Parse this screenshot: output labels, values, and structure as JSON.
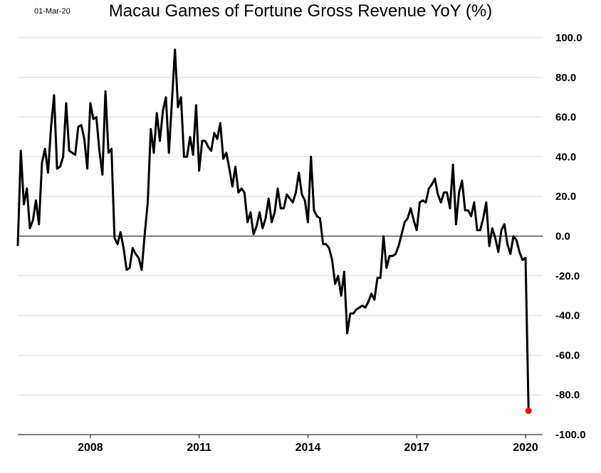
{
  "date_stamp": "01-Mar-20",
  "chart_data": {
    "type": "line",
    "title": "Macau Games of Fortune Gross Revenue YoY (%)",
    "xlabel": "",
    "ylabel": "",
    "y_axis_position": "right",
    "ylim": [
      -100,
      100
    ],
    "y_ticks": [
      "100.0",
      "80.0",
      "60.0",
      "40.0",
      "20.0",
      "0.0",
      "-20.0",
      "-40.0",
      "-60.0",
      "-80.0",
      "-100.0"
    ],
    "x_ticks": [
      "2008",
      "2011",
      "2014",
      "2017",
      "2020"
    ],
    "grid": true,
    "zero_line": true,
    "highlight_last_point": true,
    "highlight_color": "#ff0000",
    "line_color": "#000000",
    "series": [
      {
        "values": [
          {
            "x": "2006-01",
            "y": -4.5
          },
          {
            "x": "2006-02",
            "y": 43
          },
          {
            "x": "2006-03",
            "y": 16
          },
          {
            "x": "2006-04",
            "y": 24
          },
          {
            "x": "2006-05",
            "y": 4
          },
          {
            "x": "2006-06",
            "y": 8
          },
          {
            "x": "2006-07",
            "y": 18
          },
          {
            "x": "2006-08",
            "y": 6
          },
          {
            "x": "2006-09",
            "y": 37
          },
          {
            "x": "2006-10",
            "y": 44
          },
          {
            "x": "2006-11",
            "y": 32
          },
          {
            "x": "2006-12",
            "y": 55
          },
          {
            "x": "2007-01",
            "y": 71
          },
          {
            "x": "2007-02",
            "y": 34
          },
          {
            "x": "2007-03",
            "y": 35
          },
          {
            "x": "2007-04",
            "y": 40
          },
          {
            "x": "2007-05",
            "y": 67
          },
          {
            "x": "2007-06",
            "y": 43
          },
          {
            "x": "2007-07",
            "y": 42
          },
          {
            "x": "2007-08",
            "y": 41
          },
          {
            "x": "2007-09",
            "y": 55
          },
          {
            "x": "2007-10",
            "y": 56
          },
          {
            "x": "2007-11",
            "y": 49
          },
          {
            "x": "2007-12",
            "y": 34
          },
          {
            "x": "2008-01",
            "y": 67
          },
          {
            "x": "2008-02",
            "y": 59
          },
          {
            "x": "2008-03",
            "y": 60
          },
          {
            "x": "2008-04",
            "y": 43
          },
          {
            "x": "2008-05",
            "y": 31
          },
          {
            "x": "2008-06",
            "y": 73
          },
          {
            "x": "2008-07",
            "y": 42
          },
          {
            "x": "2008-08",
            "y": 44
          },
          {
            "x": "2008-09",
            "y": -1
          },
          {
            "x": "2008-10",
            "y": -4
          },
          {
            "x": "2008-11",
            "y": 2
          },
          {
            "x": "2008-12",
            "y": -6
          },
          {
            "x": "2009-01",
            "y": -17
          },
          {
            "x": "2009-02",
            "y": -16
          },
          {
            "x": "2009-03",
            "y": -6
          },
          {
            "x": "2009-04",
            "y": -9
          },
          {
            "x": "2009-05",
            "y": -11
          },
          {
            "x": "2009-06",
            "y": -17
          },
          {
            "x": "2009-07",
            "y": 1
          },
          {
            "x": "2009-08",
            "y": 17
          },
          {
            "x": "2009-09",
            "y": 54
          },
          {
            "x": "2009-10",
            "y": 42
          },
          {
            "x": "2009-11",
            "y": 62
          },
          {
            "x": "2009-12",
            "y": 48
          },
          {
            "x": "2010-01",
            "y": 63
          },
          {
            "x": "2010-02",
            "y": 70
          },
          {
            "x": "2010-03",
            "y": 42
          },
          {
            "x": "2010-04",
            "y": 68
          },
          {
            "x": "2010-05",
            "y": 94
          },
          {
            "x": "2010-06",
            "y": 65
          },
          {
            "x": "2010-07",
            "y": 70
          },
          {
            "x": "2010-08",
            "y": 40
          },
          {
            "x": "2010-09",
            "y": 40
          },
          {
            "x": "2010-10",
            "y": 50
          },
          {
            "x": "2010-11",
            "y": 41
          },
          {
            "x": "2010-12",
            "y": 66
          },
          {
            "x": "2011-01",
            "y": 33
          },
          {
            "x": "2011-02",
            "y": 48
          },
          {
            "x": "2011-03",
            "y": 48
          },
          {
            "x": "2011-04",
            "y": 45
          },
          {
            "x": "2011-05",
            "y": 43
          },
          {
            "x": "2011-06",
            "y": 52
          },
          {
            "x": "2011-07",
            "y": 49
          },
          {
            "x": "2011-08",
            "y": 57
          },
          {
            "x": "2011-09",
            "y": 39
          },
          {
            "x": "2011-10",
            "y": 42
          },
          {
            "x": "2011-11",
            "y": 34
          },
          {
            "x": "2011-12",
            "y": 25
          },
          {
            "x": "2012-01",
            "y": 35
          },
          {
            "x": "2012-02",
            "y": 22
          },
          {
            "x": "2012-03",
            "y": 24
          },
          {
            "x": "2012-04",
            "y": 22
          },
          {
            "x": "2012-05",
            "y": 7
          },
          {
            "x": "2012-06",
            "y": 12
          },
          {
            "x": "2012-07",
            "y": 1
          },
          {
            "x": "2012-08",
            "y": 5
          },
          {
            "x": "2012-09",
            "y": 12
          },
          {
            "x": "2012-10",
            "y": 4
          },
          {
            "x": "2012-11",
            "y": 9
          },
          {
            "x": "2012-12",
            "y": 19
          },
          {
            "x": "2013-01",
            "y": 7
          },
          {
            "x": "2013-02",
            "y": 12
          },
          {
            "x": "2013-03",
            "y": 24
          },
          {
            "x": "2013-04",
            "y": 14
          },
          {
            "x": "2013-05",
            "y": 14
          },
          {
            "x": "2013-06",
            "y": 21
          },
          {
            "x": "2013-07",
            "y": 19
          },
          {
            "x": "2013-08",
            "y": 17
          },
          {
            "x": "2013-09",
            "y": 22
          },
          {
            "x": "2013-10",
            "y": 32
          },
          {
            "x": "2013-11",
            "y": 21
          },
          {
            "x": "2013-12",
            "y": 18
          },
          {
            "x": "2014-01",
            "y": 7
          },
          {
            "x": "2014-02",
            "y": 40
          },
          {
            "x": "2014-03",
            "y": 13
          },
          {
            "x": "2014-04",
            "y": 10
          },
          {
            "x": "2014-05",
            "y": 9
          },
          {
            "x": "2014-06",
            "y": -4
          },
          {
            "x": "2014-07",
            "y": -4
          },
          {
            "x": "2014-08",
            "y": -6
          },
          {
            "x": "2014-09",
            "y": -12
          },
          {
            "x": "2014-10",
            "y": -24
          },
          {
            "x": "2014-11",
            "y": -20
          },
          {
            "x": "2014-12",
            "y": -30
          },
          {
            "x": "2015-01",
            "y": -18
          },
          {
            "x": "2015-02",
            "y": -49
          },
          {
            "x": "2015-03",
            "y": -39
          },
          {
            "x": "2015-04",
            "y": -39
          },
          {
            "x": "2015-05",
            "y": -37
          },
          {
            "x": "2015-06",
            "y": -36
          },
          {
            "x": "2015-07",
            "y": -35
          },
          {
            "x": "2015-08",
            "y": -36
          },
          {
            "x": "2015-09",
            "y": -33
          },
          {
            "x": "2015-10",
            "y": -29
          },
          {
            "x": "2015-11",
            "y": -32
          },
          {
            "x": "2015-12",
            "y": -21
          },
          {
            "x": "2016-01",
            "y": -21
          },
          {
            "x": "2016-02",
            "y": 0
          },
          {
            "x": "2016-03",
            "y": -16
          },
          {
            "x": "2016-04",
            "y": -10
          },
          {
            "x": "2016-05",
            "y": -10
          },
          {
            "x": "2016-06",
            "y": -9
          },
          {
            "x": "2016-07",
            "y": -5
          },
          {
            "x": "2016-08",
            "y": 1
          },
          {
            "x": "2016-09",
            "y": 7
          },
          {
            "x": "2016-10",
            "y": 9
          },
          {
            "x": "2016-11",
            "y": 14
          },
          {
            "x": "2016-12",
            "y": 8
          },
          {
            "x": "2017-01",
            "y": 3
          },
          {
            "x": "2017-02",
            "y": 17
          },
          {
            "x": "2017-03",
            "y": 18
          },
          {
            "x": "2017-04",
            "y": 17
          },
          {
            "x": "2017-05",
            "y": 24
          },
          {
            "x": "2017-06",
            "y": 26
          },
          {
            "x": "2017-07",
            "y": 29
          },
          {
            "x": "2017-08",
            "y": 21
          },
          {
            "x": "2017-09",
            "y": 17
          },
          {
            "x": "2017-10",
            "y": 22
          },
          {
            "x": "2017-11",
            "y": 22
          },
          {
            "x": "2017-12",
            "y": 14
          },
          {
            "x": "2018-01",
            "y": 36
          },
          {
            "x": "2018-02",
            "y": 6
          },
          {
            "x": "2018-03",
            "y": 22
          },
          {
            "x": "2018-04",
            "y": 28
          },
          {
            "x": "2018-05",
            "y": 13
          },
          {
            "x": "2018-06",
            "y": 13
          },
          {
            "x": "2018-07",
            "y": 10
          },
          {
            "x": "2018-08",
            "y": 17
          },
          {
            "x": "2018-09",
            "y": 3
          },
          {
            "x": "2018-10",
            "y": 3
          },
          {
            "x": "2018-11",
            "y": 9
          },
          {
            "x": "2018-12",
            "y": 17
          },
          {
            "x": "2019-01",
            "y": -5
          },
          {
            "x": "2019-02",
            "y": 4
          },
          {
            "x": "2019-03",
            "y": -1
          },
          {
            "x": "2019-04",
            "y": -8
          },
          {
            "x": "2019-05",
            "y": 3
          },
          {
            "x": "2019-06",
            "y": 6
          },
          {
            "x": "2019-07",
            "y": -4
          },
          {
            "x": "2019-08",
            "y": -9
          },
          {
            "x": "2019-09",
            "y": 0
          },
          {
            "x": "2019-10",
            "y": -2
          },
          {
            "x": "2019-11",
            "y": -8
          },
          {
            "x": "2019-12",
            "y": -12
          },
          {
            "x": "2020-01",
            "y": -11
          },
          {
            "x": "2020-02",
            "y": -88
          }
        ]
      }
    ]
  }
}
